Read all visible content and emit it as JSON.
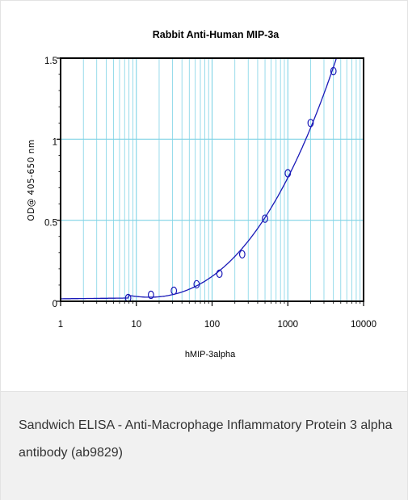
{
  "chart_data": {
    "type": "scatter",
    "title": "Rabbit Anti-Human MIP-3a",
    "xlabel": "hMIP-3alpha",
    "ylabel": "OD@ 405-650 nm",
    "xscale": "log",
    "xlim": [
      1,
      10000
    ],
    "ylim": [
      0,
      1.5
    ],
    "x_ticks": [
      1,
      10,
      100,
      1000,
      10000
    ],
    "x_tick_labels": [
      "1",
      "10",
      "100",
      "1000",
      "10000"
    ],
    "y_ticks": [
      0,
      0.5,
      1,
      1.5
    ],
    "y_tick_labels": [
      "0",
      "0.5",
      "1",
      "1.5"
    ],
    "grid": true,
    "series": [
      {
        "x": [
          7.8,
          15.6,
          31.3,
          62.5,
          125,
          250,
          500,
          1000,
          2000,
          4000
        ],
        "y": [
          0.02,
          0.04,
          0.065,
          0.105,
          0.17,
          0.29,
          0.51,
          0.79,
          1.1,
          1.42
        ],
        "marker": "circle",
        "fit": "curve"
      }
    ],
    "colors": {
      "points": "#1a1ab8",
      "curve": "#1a1ab8",
      "grid": "#7fd3e6"
    }
  },
  "caption": {
    "text": "Sandwich ELISA - Anti-Macrophage Inflammatory Protein 3 alpha antibody (ab9829)"
  }
}
